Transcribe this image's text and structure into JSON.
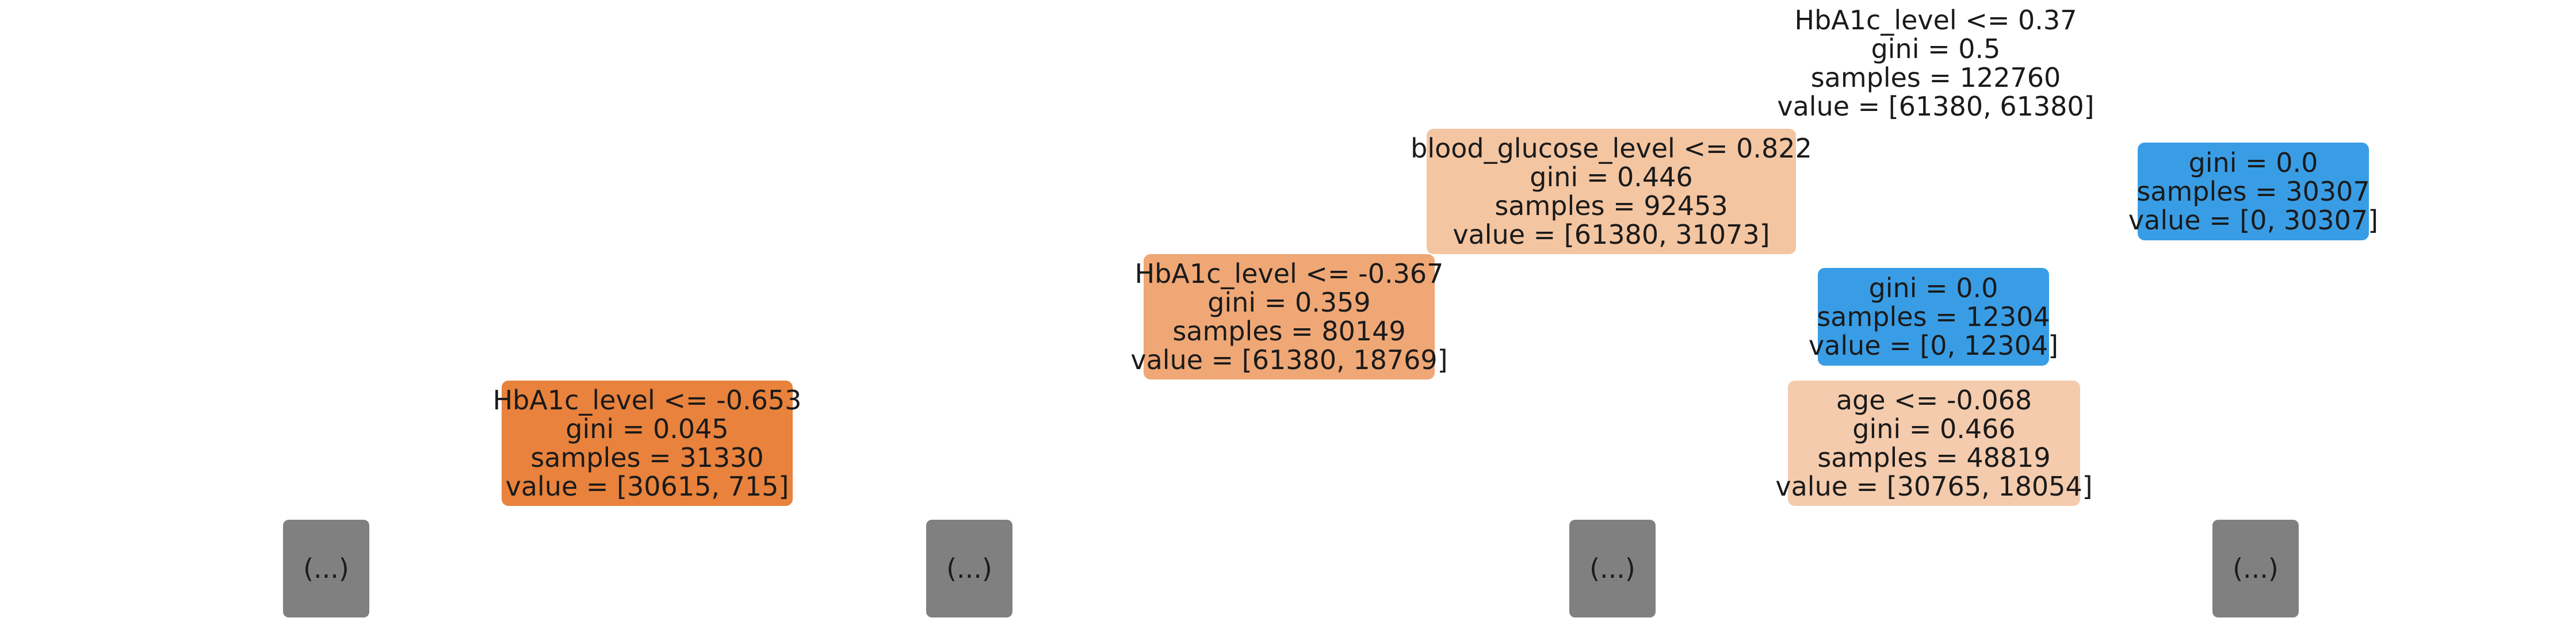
{
  "colors": {
    "root": "#ffffff",
    "blood_glucose": "#f3c5a1",
    "hba1c_second": "#efa775",
    "hba1c_third": "#e8823c",
    "age": "#f4cbad",
    "pure_class1": "#399de5",
    "truncated": "#808080"
  },
  "nodes": {
    "root": {
      "line1": "HbA1c_level <= 0.37",
      "line2": "gini = 0.5",
      "line3": "samples = 122760",
      "line4": "value = [61380, 61380]"
    },
    "blood_glucose": {
      "line1": "blood_glucose_level <= 0.822",
      "line2": "gini = 0.446",
      "line3": "samples = 92453",
      "line4": "value = [61380, 31073]"
    },
    "pure_30307": {
      "line1": "gini = 0.0",
      "line2": "samples = 30307",
      "line3": "value = [0, 30307]"
    },
    "hba1c_second": {
      "line1": "HbA1c_level <= -0.367",
      "line2": "gini = 0.359",
      "line3": "samples = 80149",
      "line4": "value = [61380, 18769]"
    },
    "pure_12304": {
      "line1": "gini = 0.0",
      "line2": "samples = 12304",
      "line3": "value = [0, 12304]"
    },
    "hba1c_third": {
      "line1": "HbA1c_level <= -0.653",
      "line2": "gini = 0.045",
      "line3": "samples = 31330",
      "line4": "value = [30615, 715]"
    },
    "age": {
      "line1": "age <= -0.068",
      "line2": "gini = 0.466",
      "line3": "samples = 48819",
      "line4": "value = [30765, 18054]"
    }
  },
  "truncated_label": "(...)"
}
